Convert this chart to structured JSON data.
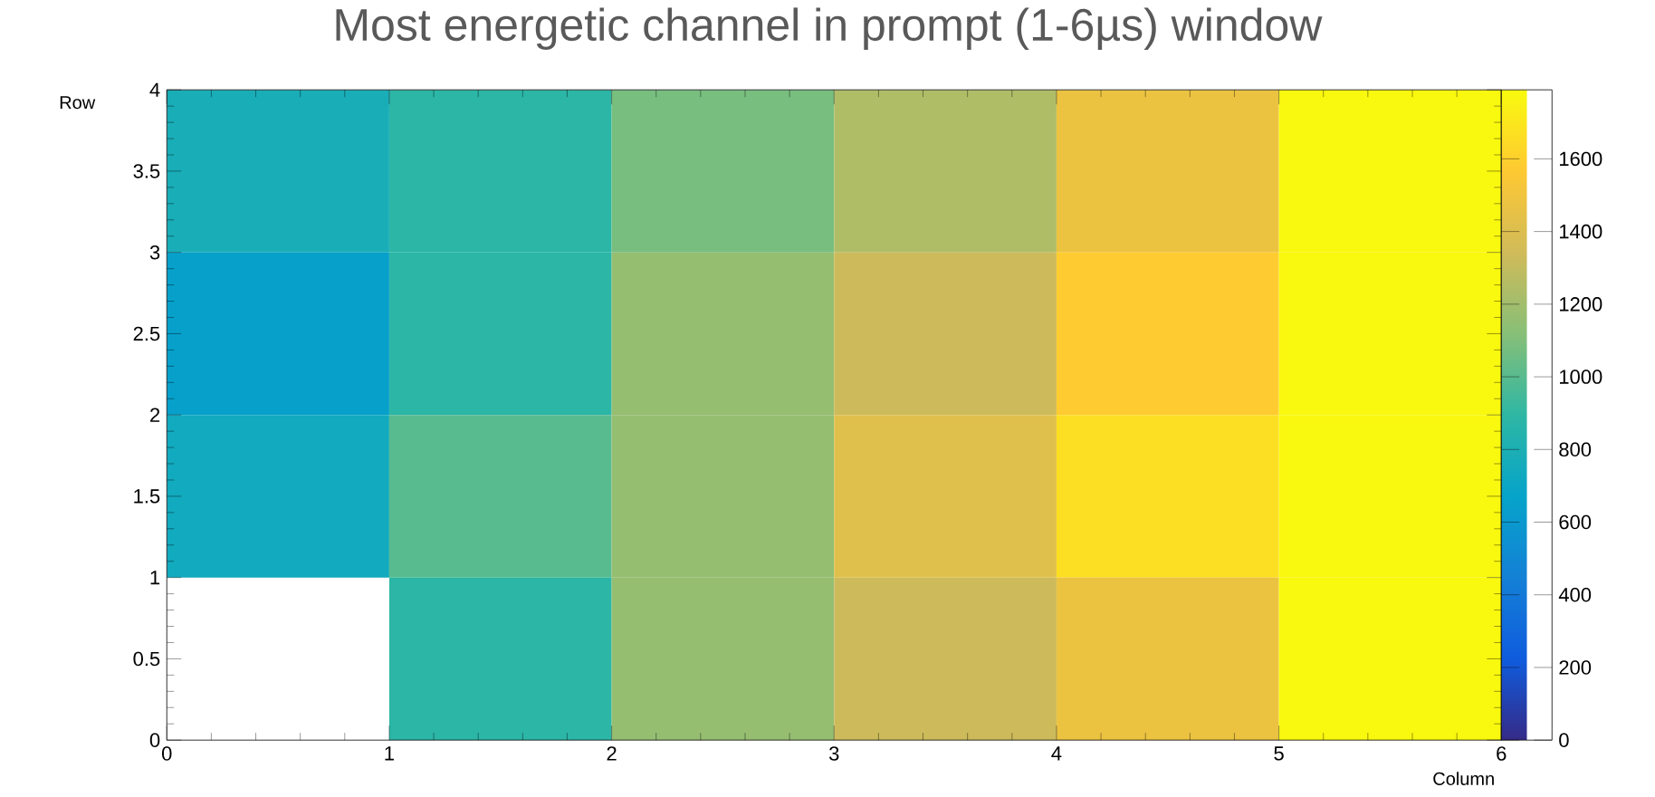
{
  "chart_data": {
    "type": "heatmap",
    "title": "Most energetic channel in prompt (1-6µs) window",
    "xlabel": "Column",
    "ylabel": "Row",
    "x": [
      0.5,
      1.5,
      2.5,
      3.5,
      4.5,
      5.5
    ],
    "y": [
      3.5,
      2.5,
      1.5,
      0.5
    ],
    "xlim": [
      0,
      6
    ],
    "xticks": [
      0,
      1,
      2,
      3,
      4,
      5,
      6
    ],
    "ylim": [
      0,
      4
    ],
    "yticks": [
      0,
      0.5,
      1,
      1.5,
      2,
      2.5,
      3,
      3.5,
      4
    ],
    "cells": [
      [
        780,
        880,
        1080,
        1240,
        1480,
        1780
      ],
      [
        650,
        880,
        1160,
        1330,
        1580,
        1780
      ],
      [
        740,
        1000,
        1160,
        1420,
        1660,
        1780
      ],
      [
        null,
        880,
        1160,
        1330,
        1480,
        1780
      ]
    ],
    "clim": [
      0,
      1790
    ],
    "cticks": [
      0,
      200,
      400,
      600,
      800,
      1000,
      1200,
      1400,
      1600
    ]
  }
}
